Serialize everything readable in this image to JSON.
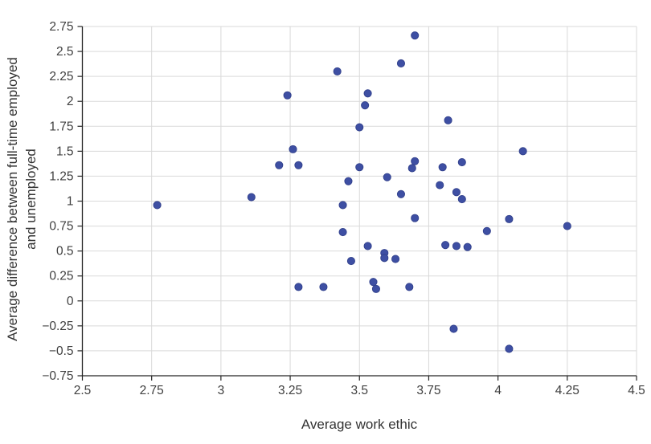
{
  "chart_data": {
    "type": "scatter",
    "title": "",
    "xlabel": "Average work ethic",
    "ylabel_line1": "Average difference between full-time employed",
    "ylabel_line2": "and unemployed",
    "xlim": [
      2.5,
      4.5
    ],
    "ylim": [
      -0.75,
      2.75
    ],
    "x_ticks": [
      2.5,
      2.75,
      3,
      3.25,
      3.5,
      3.75,
      4,
      4.25,
      4.5
    ],
    "y_ticks": [
      -0.75,
      -0.5,
      -0.25,
      0,
      0.25,
      0.5,
      0.75,
      1,
      1.25,
      1.5,
      1.75,
      2,
      2.25,
      2.5,
      2.75
    ],
    "grid": true,
    "legend": "none",
    "marker_color": "#3e4fa3",
    "marker_edge_color": "#32418c",
    "grid_color": "#d9d9d9",
    "axis_color": "#262626",
    "tick_label_color": "#404040",
    "points": [
      [
        2.77,
        0.96
      ],
      [
        3.11,
        1.04
      ],
      [
        3.21,
        1.36
      ],
      [
        3.24,
        2.06
      ],
      [
        3.26,
        1.52
      ],
      [
        3.28,
        1.36
      ],
      [
        3.28,
        0.14
      ],
      [
        3.37,
        0.14
      ],
      [
        3.42,
        2.3
      ],
      [
        3.44,
        0.96
      ],
      [
        3.44,
        0.69
      ],
      [
        3.46,
        1.2
      ],
      [
        3.47,
        0.4
      ],
      [
        3.5,
        1.74
      ],
      [
        3.5,
        1.34
      ],
      [
        3.52,
        1.96
      ],
      [
        3.53,
        2.08
      ],
      [
        3.53,
        0.55
      ],
      [
        3.55,
        0.19
      ],
      [
        3.56,
        0.12
      ],
      [
        3.59,
        0.48
      ],
      [
        3.59,
        0.43
      ],
      [
        3.6,
        1.24
      ],
      [
        3.63,
        0.42
      ],
      [
        3.65,
        2.38
      ],
      [
        3.65,
        1.07
      ],
      [
        3.68,
        0.14
      ],
      [
        3.69,
        1.33
      ],
      [
        3.7,
        2.66
      ],
      [
        3.7,
        1.4
      ],
      [
        3.7,
        0.83
      ],
      [
        3.79,
        1.16
      ],
      [
        3.8,
        1.34
      ],
      [
        3.81,
        0.56
      ],
      [
        3.82,
        1.81
      ],
      [
        3.84,
        -0.28
      ],
      [
        3.85,
        1.09
      ],
      [
        3.85,
        0.55
      ],
      [
        3.87,
        1.39
      ],
      [
        3.87,
        1.02
      ],
      [
        3.89,
        0.54
      ],
      [
        3.96,
        0.7
      ],
      [
        4.04,
        0.82
      ],
      [
        4.04,
        -0.48
      ],
      [
        4.09,
        1.5
      ],
      [
        4.25,
        0.75
      ]
    ]
  }
}
